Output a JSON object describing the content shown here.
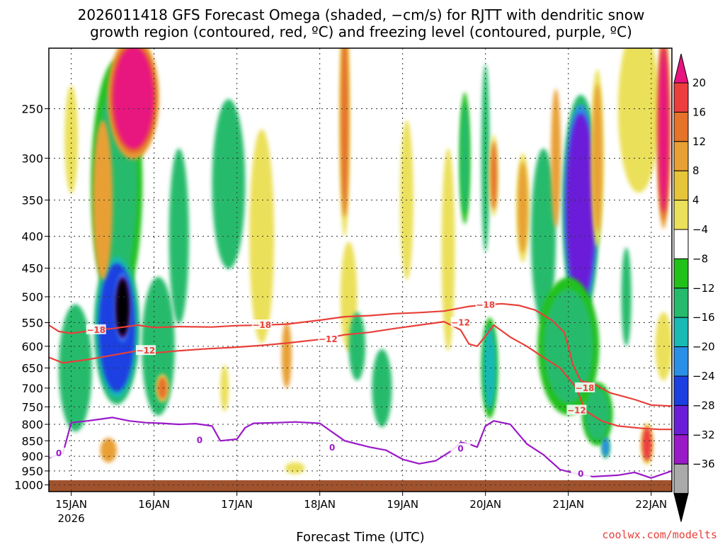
{
  "chart_data": {
    "type": "heatmap",
    "title_line1": "2026011418 GFS Forecast Omega (shaded, −cm/s) for RJTT with dendritic snow",
    "title_line2": "growth region (contoured, red, ºC) and freezing level (contoured, purple, ºC)",
    "xlabel": "Forecast Time (UTC)",
    "credit": "coolwx.com/modelts",
    "x_ticks": [
      {
        "label": "15JAN",
        "sub": "2026",
        "day": 0
      },
      {
        "label": "16JAN",
        "sub": "",
        "day": 1
      },
      {
        "label": "17JAN",
        "sub": "",
        "day": 2
      },
      {
        "label": "18JAN",
        "sub": "",
        "day": 3
      },
      {
        "label": "19JAN",
        "sub": "",
        "day": 4
      },
      {
        "label": "20JAN",
        "sub": "",
        "day": 5
      },
      {
        "label": "21JAN",
        "sub": "",
        "day": 6
      },
      {
        "label": "22JAN",
        "sub": "",
        "day": 7
      }
    ],
    "x_range_days": [
      -0.27,
      7.25
    ],
    "y_ticks": [
      "250",
      "300",
      "350",
      "400",
      "450",
      "500",
      "550",
      "600",
      "650",
      "700",
      "750",
      "800",
      "850",
      "900",
      "950",
      "1000"
    ],
    "y_range_hpa": [
      200,
      1025
    ],
    "colorbar": {
      "labels": [
        "20",
        "16",
        "12",
        "8",
        "4",
        "−4",
        "−8",
        "−12",
        "−16",
        "−20",
        "−24",
        "−28",
        "−32",
        "−36"
      ],
      "colors": [
        "#e8137f",
        "#ee3d3d",
        "#e5732a",
        "#e8a034",
        "#e6c53a",
        "#ebe05a",
        "#ffffff",
        "#22c11a",
        "#26bb6c",
        "#19b9b4",
        "#2a8fe6",
        "#1c3fe2",
        "#6a1ed8",
        "#9a1ac8",
        "#aaaaaa",
        "#000000"
      ]
    },
    "contours": [
      {
        "name": "dgz-minus18",
        "label": "−18",
        "color": "#e8403a",
        "points": [
          [
            -0.27,
            555
          ],
          [
            -0.15,
            568
          ],
          [
            0,
            572
          ],
          [
            0.3,
            565
          ],
          [
            0.5,
            562
          ],
          [
            0.8,
            555
          ],
          [
            1.0,
            560
          ],
          [
            1.3,
            558
          ],
          [
            1.7,
            559
          ],
          [
            2.0,
            556
          ],
          [
            2.3,
            555
          ],
          [
            2.6,
            553
          ],
          [
            3.0,
            545
          ],
          [
            3.3,
            538
          ],
          [
            3.6,
            536
          ],
          [
            3.9,
            532
          ],
          [
            4.2,
            530
          ],
          [
            4.5,
            527
          ],
          [
            4.8,
            518
          ],
          [
            5.0,
            515
          ],
          [
            5.2,
            513
          ],
          [
            5.4,
            516
          ],
          [
            5.6,
            525
          ],
          [
            5.8,
            545
          ],
          [
            5.95,
            570
          ],
          [
            6.0,
            600
          ],
          [
            6.05,
            640
          ],
          [
            6.15,
            682
          ],
          [
            6.3,
            688
          ],
          [
            6.5,
            712
          ],
          [
            6.8,
            730
          ],
          [
            7.0,
            745
          ],
          [
            7.25,
            748
          ]
        ]
      },
      {
        "name": "dgz-minus12",
        "label": "−12",
        "color": "#e8403a",
        "points": [
          [
            -0.27,
            625
          ],
          [
            -0.1,
            638
          ],
          [
            0.2,
            630
          ],
          [
            0.5,
            620
          ],
          [
            0.8,
            610
          ],
          [
            1.0,
            615
          ],
          [
            1.3,
            610
          ],
          [
            1.6,
            606
          ],
          [
            2.0,
            602
          ],
          [
            2.3,
            598
          ],
          [
            2.6,
            593
          ],
          [
            3.0,
            585
          ],
          [
            3.3,
            575
          ],
          [
            3.6,
            570
          ],
          [
            3.9,
            562
          ],
          [
            4.2,
            555
          ],
          [
            4.5,
            548
          ],
          [
            4.7,
            565
          ],
          [
            4.8,
            595
          ],
          [
            4.9,
            600
          ],
          [
            5.0,
            578
          ],
          [
            5.1,
            555
          ],
          [
            5.3,
            580
          ],
          [
            5.5,
            600
          ],
          [
            5.7,
            625
          ],
          [
            5.9,
            650
          ],
          [
            6.1,
            700
          ],
          [
            6.2,
            760
          ],
          [
            6.4,
            790
          ],
          [
            6.6,
            805
          ],
          [
            6.9,
            812
          ],
          [
            7.1,
            815
          ],
          [
            7.25,
            815
          ]
        ]
      },
      {
        "name": "freezing-level",
        "label": "0",
        "color": "#9a1ac8",
        "points": [
          [
            -0.27,
            905
          ],
          [
            -0.1,
            890
          ],
          [
            0,
            795
          ],
          [
            0.2,
            790
          ],
          [
            0.5,
            780
          ],
          [
            0.7,
            790
          ],
          [
            0.9,
            795
          ],
          [
            1.1,
            797
          ],
          [
            1.3,
            800
          ],
          [
            1.5,
            798
          ],
          [
            1.7,
            805
          ],
          [
            1.8,
            850
          ],
          [
            2.0,
            845
          ],
          [
            2.1,
            810
          ],
          [
            2.2,
            797
          ],
          [
            2.5,
            795
          ],
          [
            2.7,
            793
          ],
          [
            3.0,
            797
          ],
          [
            3.3,
            850
          ],
          [
            3.6,
            870
          ],
          [
            3.8,
            880
          ],
          [
            4.0,
            910
          ],
          [
            4.2,
            925
          ],
          [
            4.4,
            915
          ],
          [
            4.6,
            880
          ],
          [
            4.7,
            855
          ],
          [
            4.8,
            860
          ],
          [
            4.9,
            870
          ],
          [
            5.0,
            805
          ],
          [
            5.1,
            790
          ],
          [
            5.3,
            800
          ],
          [
            5.5,
            860
          ],
          [
            5.7,
            895
          ],
          [
            5.9,
            945
          ],
          [
            6.1,
            960
          ],
          [
            6.3,
            970
          ],
          [
            6.6,
            965
          ],
          [
            6.8,
            955
          ],
          [
            7.0,
            975
          ],
          [
            7.25,
            950
          ]
        ]
      }
    ],
    "contour_labels": [
      {
        "text": "−18",
        "day": 0.3,
        "hpa": 565,
        "color": "#e8403a"
      },
      {
        "text": "−18",
        "day": 2.3,
        "hpa": 555,
        "color": "#e8403a"
      },
      {
        "text": "−18",
        "day": 5.0,
        "hpa": 515,
        "color": "#e8403a"
      },
      {
        "text": "−18",
        "day": 6.2,
        "hpa": 700,
        "color": "#e8403a"
      },
      {
        "text": "−12",
        "day": 0.9,
        "hpa": 610,
        "color": "#e8403a"
      },
      {
        "text": "−12",
        "day": 3.1,
        "hpa": 585,
        "color": "#e8403a"
      },
      {
        "text": "−12",
        "day": 4.7,
        "hpa": 550,
        "color": "#e8403a"
      },
      {
        "text": "−12",
        "day": 6.1,
        "hpa": 760,
        "color": "#e8403a"
      },
      {
        "text": "0",
        "day": -0.15,
        "hpa": 890,
        "color": "#9a1ac8"
      },
      {
        "text": "0",
        "day": 1.55,
        "hpa": 848,
        "color": "#9a1ac8"
      },
      {
        "text": "0",
        "day": 3.15,
        "hpa": 872,
        "color": "#9a1ac8"
      },
      {
        "text": "0",
        "day": 4.7,
        "hpa": 875,
        "color": "#9a1ac8"
      },
      {
        "text": "0",
        "day": 6.15,
        "hpa": 960,
        "color": "#9a1ac8"
      }
    ],
    "omega_blobs": [
      {
        "day": 0.55,
        "hpa": 330,
        "dday": 0.25,
        "dhpa": 240,
        "value": -10
      },
      {
        "day": 0.55,
        "hpa": 560,
        "dday": 0.22,
        "dhpa": 260,
        "value": -22
      },
      {
        "day": 0.62,
        "hpa": 520,
        "dday": 0.08,
        "dhpa": 110,
        "value": -36
      },
      {
        "day": 0.38,
        "hpa": 350,
        "dday": 0.12,
        "dhpa": 200,
        "value": 8
      },
      {
        "day": 0.75,
        "hpa": 240,
        "dday": 0.25,
        "dhpa": 90,
        "value": 22
      },
      {
        "day": 1.05,
        "hpa": 600,
        "dday": 0.2,
        "dhpa": 300,
        "value": -9
      },
      {
        "day": 1.1,
        "hpa": 700,
        "dday": 0.06,
        "dhpa": 60,
        "value": 14
      },
      {
        "day": 1.3,
        "hpa": 400,
        "dday": 0.12,
        "dhpa": 250,
        "value": -8
      },
      {
        "day": 0.05,
        "hpa": 650,
        "dday": 0.2,
        "dhpa": 300,
        "value": -9
      },
      {
        "day": 0.0,
        "hpa": 280,
        "dday": 0.08,
        "dhpa": 110,
        "value": 6
      },
      {
        "day": 1.9,
        "hpa": 330,
        "dday": 0.2,
        "dhpa": 200,
        "value": -8
      },
      {
        "day": 2.3,
        "hpa": 400,
        "dday": 0.15,
        "dhpa": 300,
        "value": 6
      },
      {
        "day": 2.6,
        "hpa": 620,
        "dday": 0.06,
        "dhpa": 150,
        "value": 9
      },
      {
        "day": 3.3,
        "hpa": 260,
        "dday": 0.05,
        "dhpa": 180,
        "value": 14
      },
      {
        "day": 3.35,
        "hpa": 500,
        "dday": 0.1,
        "dhpa": 200,
        "value": 6
      },
      {
        "day": 3.45,
        "hpa": 600,
        "dday": 0.1,
        "dhpa": 150,
        "value": -8
      },
      {
        "day": 3.75,
        "hpa": 700,
        "dday": 0.12,
        "dhpa": 200,
        "value": -8
      },
      {
        "day": 4.05,
        "hpa": 350,
        "dday": 0.08,
        "dhpa": 200,
        "value": 6
      },
      {
        "day": 4.55,
        "hpa": 420,
        "dday": 0.08,
        "dhpa": 300,
        "value": 6
      },
      {
        "day": 4.75,
        "hpa": 300,
        "dday": 0.05,
        "dhpa": 120,
        "value": -10
      },
      {
        "day": 5.0,
        "hpa": 300,
        "dday": 0.05,
        "dhpa": 200,
        "value": -8
      },
      {
        "day": 5.05,
        "hpa": 650,
        "dday": 0.08,
        "dhpa": 200,
        "value": -12
      },
      {
        "day": 5.1,
        "hpa": 320,
        "dday": 0.04,
        "dhpa": 80,
        "value": 12
      },
      {
        "day": 5.45,
        "hpa": 360,
        "dday": 0.06,
        "dhpa": 120,
        "value": 10
      },
      {
        "day": 5.7,
        "hpa": 400,
        "dday": 0.15,
        "dhpa": 250,
        "value": -8
      },
      {
        "day": 5.85,
        "hpa": 300,
        "dday": 0.06,
        "dhpa": 150,
        "value": 8
      },
      {
        "day": 6.15,
        "hpa": 360,
        "dday": 0.18,
        "dhpa": 240,
        "value": -26
      },
      {
        "day": 6.35,
        "hpa": 300,
        "dday": 0.06,
        "dhpa": 160,
        "value": 10
      },
      {
        "day": 6.0,
        "hpa": 600,
        "dday": 0.3,
        "dhpa": 250,
        "value": -10
      },
      {
        "day": 6.35,
        "hpa": 770,
        "dday": 0.15,
        "dhpa": 150,
        "value": -10
      },
      {
        "day": 6.45,
        "hpa": 870,
        "dday": 0.04,
        "dhpa": 60,
        "value": -18
      },
      {
        "day": 6.85,
        "hpa": 250,
        "dday": 0.25,
        "dhpa": 150,
        "value": 6
      },
      {
        "day": 7.15,
        "hpa": 270,
        "dday": 0.06,
        "dhpa": 160,
        "value": 20
      },
      {
        "day": 6.95,
        "hpa": 860,
        "dday": 0.06,
        "dhpa": 110,
        "value": 16
      },
      {
        "day": 7.15,
        "hpa": 600,
        "dday": 0.1,
        "dhpa": 150,
        "value": 5
      },
      {
        "day": 6.7,
        "hpa": 500,
        "dday": 0.06,
        "dhpa": 180,
        "value": -8
      },
      {
        "day": 0.45,
        "hpa": 880,
        "dday": 0.1,
        "dhpa": 80,
        "value": 8
      },
      {
        "day": 2.7,
        "hpa": 940,
        "dday": 0.12,
        "dhpa": 40,
        "value": 6
      },
      {
        "day": 1.85,
        "hpa": 700,
        "dday": 0.05,
        "dhpa": 120,
        "value": 5
      }
    ]
  }
}
